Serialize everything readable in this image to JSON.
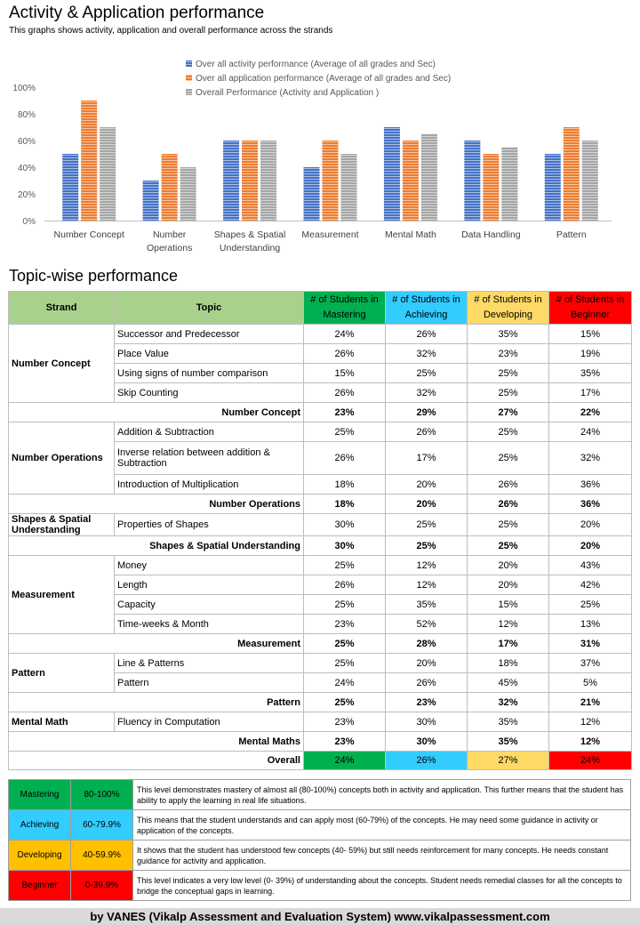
{
  "header": {
    "title": "Activity & Application performance",
    "subtitle": "This graphs shows activity, application and overall performance across the strands"
  },
  "chart_data": {
    "type": "bar",
    "categories": [
      "Number Concept",
      "Number Operations",
      "Shapes & Spatial Understanding",
      "Measurement",
      "Mental Math",
      "Data Handling",
      "Pattern"
    ],
    "series": [
      {
        "name": "Over all activity performance (Average of all grades and Sec)",
        "color": "#4472c4",
        "values": [
          50,
          30,
          60,
          40,
          70,
          60,
          50
        ]
      },
      {
        "name": "Over all application performance (Average of all grades and Sec)",
        "color": "#ed7d31",
        "values": [
          90,
          50,
          60,
          60,
          60,
          50,
          70
        ]
      },
      {
        "name": "Overall Performance (Activity and Application )",
        "color": "#a5a5a5",
        "values": [
          70,
          40,
          60,
          50,
          65,
          55,
          60
        ]
      }
    ],
    "ylim": [
      0,
      100
    ],
    "yticks": [
      "0%",
      "20%",
      "40%",
      "60%",
      "80%",
      "100%"
    ],
    "legend_position": "top-center",
    "grid": false
  },
  "table": {
    "section_title": "Topic-wise performance",
    "headers": [
      "Strand",
      "Topic",
      "# of Students in Mastering",
      "# of Students in Achieving",
      "# of Students in Developing",
      "# of Students in Beginner"
    ],
    "header_colors": [
      "#00b050",
      "#33ccff",
      "#ffd966",
      "#ff0000"
    ],
    "groups": [
      {
        "strand": "Number Concept",
        "rows": [
          {
            "topic": "Successor and Predecessor",
            "values": [
              "24%",
              "26%",
              "35%",
              "15%"
            ]
          },
          {
            "topic": "Place Value",
            "values": [
              "26%",
              "32%",
              "23%",
              "19%"
            ]
          },
          {
            "topic": "Using signs of number comparison",
            "values": [
              "15%",
              "25%",
              "25%",
              "35%"
            ]
          },
          {
            "topic": "Skip Counting",
            "values": [
              "26%",
              "32%",
              "25%",
              "17%"
            ]
          }
        ],
        "subtotal": {
          "label": "Number Concept",
          "values": [
            "23%",
            "29%",
            "27%",
            "22%"
          ]
        }
      },
      {
        "strand": "Number Operations",
        "rows": [
          {
            "topic": "Addition & Subtraction",
            "values": [
              "25%",
              "26%",
              "25%",
              "24%"
            ]
          },
          {
            "topic": "Inverse relation between addition & Subtraction",
            "values": [
              "26%",
              "17%",
              "25%",
              "32%"
            ]
          },
          {
            "topic": "Introduction of Multiplication",
            "values": [
              "18%",
              "20%",
              "26%",
              "36%"
            ]
          }
        ],
        "subtotal": {
          "label": "Number Operations",
          "values": [
            "18%",
            "20%",
            "26%",
            "36%"
          ]
        }
      },
      {
        "strand": "Shapes & Spatial Understanding",
        "rows": [
          {
            "topic": "Properties of Shapes",
            "values": [
              "30%",
              "25%",
              "25%",
              "20%"
            ]
          }
        ],
        "subtotal": {
          "label": "Shapes & Spatial Understanding",
          "values": [
            "30%",
            "25%",
            "25%",
            "20%"
          ]
        }
      },
      {
        "strand": "Measurement",
        "rows": [
          {
            "topic": "Money",
            "values": [
              "25%",
              "12%",
              "20%",
              "43%"
            ]
          },
          {
            "topic": "Length",
            "values": [
              "26%",
              "12%",
              "20%",
              "42%"
            ]
          },
          {
            "topic": "Capacity",
            "values": [
              "25%",
              "35%",
              "15%",
              "25%"
            ]
          },
          {
            "topic": "Time-weeks & Month",
            "values": [
              "23%",
              "52%",
              "12%",
              "13%"
            ]
          }
        ],
        "subtotal": {
          "label": "Measurement",
          "values": [
            "25%",
            "28%",
            "17%",
            "31%"
          ]
        }
      },
      {
        "strand": "Pattern",
        "rows": [
          {
            "topic": "Line & Patterns",
            "values": [
              "25%",
              "20%",
              "18%",
              "37%"
            ]
          },
          {
            "topic": "Pattern",
            "values": [
              "24%",
              "26%",
              "45%",
              "5%"
            ]
          }
        ],
        "subtotal": {
          "label": "Pattern",
          "values": [
            "25%",
            "23%",
            "32%",
            "21%"
          ]
        }
      },
      {
        "strand": "Mental Math",
        "rows": [
          {
            "topic": "Fluency in Computation",
            "values": [
              "23%",
              "30%",
              "35%",
              "12%"
            ]
          }
        ],
        "subtotal": {
          "label": "Mental Maths",
          "values": [
            "23%",
            "30%",
            "35%",
            "12%"
          ]
        }
      }
    ],
    "overall": {
      "label": "Overall",
      "values": [
        "24%",
        "26%",
        "27%",
        "24%"
      ]
    }
  },
  "legend_table": [
    {
      "name": "Mastering",
      "range": "80-100%",
      "color": "#00b050",
      "desc": "This level demonstrates mastery of almost all (80-100%) concepts both in activity and application. This further means that the student has ability to apply the learning in real life situations."
    },
    {
      "name": "Achieving",
      "range": "60-79.9%",
      "color": "#33ccff",
      "desc": "This means that the student understands and can apply most (60-79%) of the concepts. He may need some guidance in activity or application of the concepts."
    },
    {
      "name": "Developing",
      "range": "40-59.9%",
      "color": "#ffc000",
      "desc": "It shows that the student has understood few concepts (40- 59%) but still needs reinforcement for many concepts. He needs constant guidance for activity and application."
    },
    {
      "name": "Beginner",
      "range": "0-39.9%",
      "color": "#ff0000",
      "desc": "This level indicates a very low level (0- 39%) of understanding about the concepts. Student needs remedial classes for all the concepts to bridge the conceptual gaps in learning."
    }
  ],
  "footer": {
    "text": "by VANES (Vikalp Assessment and Evaluation System) www.vikalpassessment.com"
  }
}
